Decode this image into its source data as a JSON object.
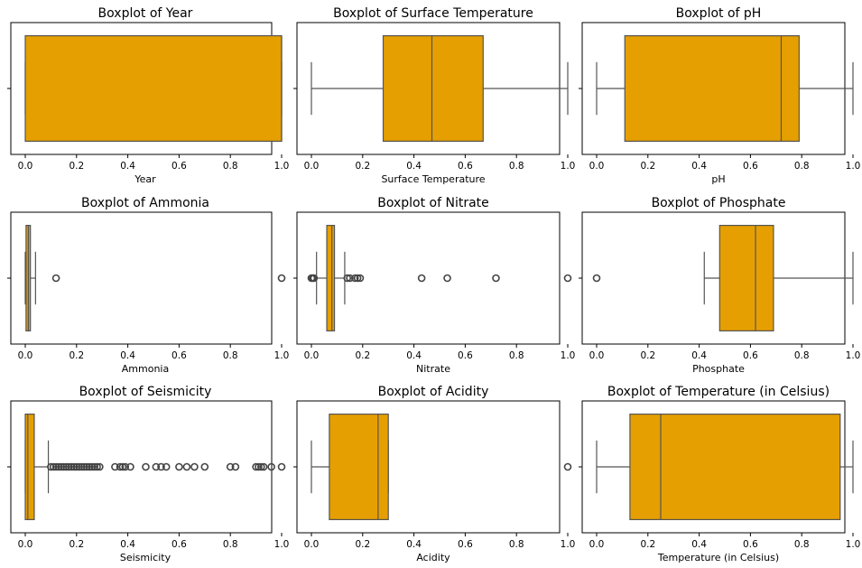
{
  "figure": {
    "background": "#ffffff",
    "box_color": "#E69F00",
    "line_color": "#555555"
  },
  "chart_data": [
    {
      "type": "boxplot",
      "title": "Boxplot of Year",
      "xlabel": "Year",
      "xlim": [
        0,
        1
      ],
      "ticks": [
        "0.0",
        "0.2",
        "0.4",
        "0.6",
        "0.8",
        "1.0"
      ],
      "stats": {
        "whislo": 0.0,
        "q1": 0.0,
        "median": 1.0,
        "q3": 1.0,
        "whishi": 1.0
      },
      "fliers": []
    },
    {
      "type": "boxplot",
      "title": "Boxplot of Surface Temperature",
      "xlabel": "Surface Temperature",
      "xlim": [
        0,
        1
      ],
      "ticks": [
        "0.0",
        "0.2",
        "0.4",
        "0.6",
        "0.8",
        "1.0"
      ],
      "stats": {
        "whislo": 0.0,
        "q1": 0.28,
        "median": 0.47,
        "q3": 0.67,
        "whishi": 1.0
      },
      "fliers": []
    },
    {
      "type": "boxplot",
      "title": "Boxplot of pH",
      "xlabel": "pH",
      "xlim": [
        0,
        1
      ],
      "ticks": [
        "0.0",
        "0.2",
        "0.4",
        "0.6",
        "0.8",
        "1.0"
      ],
      "stats": {
        "whislo": 0.0,
        "q1": 0.11,
        "median": 0.72,
        "q3": 0.79,
        "whishi": 1.0
      },
      "fliers": []
    },
    {
      "type": "boxplot",
      "title": "Boxplot of Ammonia",
      "xlabel": "Ammonia",
      "xlim": [
        0,
        1
      ],
      "ticks": [
        "0.0",
        "0.2",
        "0.4",
        "0.6",
        "0.8",
        "1.0"
      ],
      "stats": {
        "whislo": 0.0,
        "q1": 0.003,
        "median": 0.012,
        "q3": 0.02,
        "whishi": 0.04
      },
      "fliers": [
        0.12,
        1.0
      ]
    },
    {
      "type": "boxplot",
      "title": "Boxplot of Nitrate",
      "xlabel": "Nitrate",
      "xlim": [
        0,
        1
      ],
      "ticks": [
        "0.0",
        "0.2",
        "0.4",
        "0.6",
        "0.8",
        "1.0"
      ],
      "stats": {
        "whislo": 0.02,
        "q1": 0.06,
        "median": 0.08,
        "q3": 0.09,
        "whishi": 0.13
      },
      "fliers": [
        0.0,
        0.005,
        0.01,
        0.14,
        0.15,
        0.17,
        0.18,
        0.19,
        0.43,
        0.53,
        0.72,
        1.0
      ]
    },
    {
      "type": "boxplot",
      "title": "Boxplot of Phosphate",
      "xlabel": "Phosphate",
      "xlim": [
        0,
        1
      ],
      "ticks": [
        "0.0",
        "0.2",
        "0.4",
        "0.6",
        "0.8",
        "1.0"
      ],
      "stats": {
        "whislo": 0.42,
        "q1": 0.48,
        "median": 0.62,
        "q3": 0.69,
        "whishi": 1.0
      },
      "fliers": [
        0.0
      ]
    },
    {
      "type": "boxplot",
      "title": "Boxplot of Seismicity",
      "xlabel": "Seismicity",
      "xlim": [
        0,
        1
      ],
      "ticks": [
        "0.0",
        "0.2",
        "0.4",
        "0.6",
        "0.8",
        "1.0"
      ],
      "stats": {
        "whislo": 0.0,
        "q1": 0.0,
        "median": 0.01,
        "q3": 0.035,
        "whishi": 0.09
      },
      "fliers": [
        0.1,
        0.11,
        0.12,
        0.13,
        0.14,
        0.15,
        0.16,
        0.17,
        0.18,
        0.19,
        0.2,
        0.21,
        0.22,
        0.23,
        0.24,
        0.25,
        0.26,
        0.27,
        0.28,
        0.29,
        0.35,
        0.37,
        0.38,
        0.39,
        0.41,
        0.47,
        0.51,
        0.53,
        0.55,
        0.6,
        0.63,
        0.66,
        0.7,
        0.8,
        0.82,
        0.9,
        0.91,
        0.92,
        0.93,
        0.96,
        1.0
      ]
    },
    {
      "type": "boxplot",
      "title": "Boxplot of Acidity",
      "xlabel": "Acidity",
      "xlim": [
        0,
        1
      ],
      "ticks": [
        "0.0",
        "0.2",
        "0.4",
        "0.6",
        "0.8",
        "1.0"
      ],
      "stats": {
        "whislo": 0.0,
        "q1": 0.07,
        "median": 0.26,
        "q3": 0.3,
        "whishi": 0.3
      },
      "fliers": [
        1.0
      ]
    },
    {
      "type": "boxplot",
      "title": "Boxplot of Temperature (in Celsius)",
      "xlabel": "Temperature (in Celsius)",
      "xlim": [
        0,
        1
      ],
      "ticks": [
        "0.0",
        "0.2",
        "0.4",
        "0.6",
        "0.8",
        "1.0"
      ],
      "stats": {
        "whislo": 0.0,
        "q1": 0.13,
        "median": 0.25,
        "q3": 0.95,
        "whishi": 1.0
      },
      "fliers": []
    }
  ]
}
